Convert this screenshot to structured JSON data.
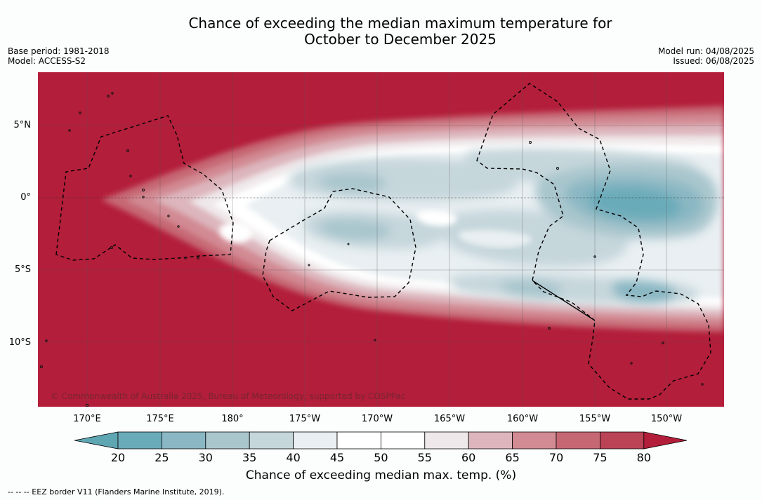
{
  "title_line1": "Chance of exceeding the median maximum temperature for",
  "title_line2": "October to December 2025",
  "base_period": "Base period: 1981-2018",
  "model": "Model: ACCESS-S2",
  "model_run": "Model run: 04/08/2025",
  "issued": "Issued: 06/08/2025",
  "copyright": "© Commonwealth of Australia 2025, Bureau of Meteorology, supported by COSPPac",
  "lat_labels": [
    "5°N",
    "0°",
    "5°S",
    "10°S"
  ],
  "lon_labels": [
    "170°E",
    "175°E",
    "180°",
    "175°W",
    "170°W",
    "165°W",
    "160°W",
    "155°W",
    "150°W"
  ],
  "colorbar": {
    "ticks": [
      "20",
      "25",
      "30",
      "35",
      "40",
      "45",
      "50",
      "55",
      "60",
      "65",
      "70",
      "75",
      "80"
    ],
    "colors": [
      "#5fa6b3",
      "#6aabb9",
      "#8ab7c3",
      "#a9c6cd",
      "#c6d7dc",
      "#e9eff2",
      "#ffffff",
      "#ffffff",
      "#efe8ea",
      "#ddb6bd",
      "#d28a93",
      "#c66874",
      "#ba4456",
      "#b31e3a"
    ],
    "label": "Chance of exceeding median max. temp. (%)"
  },
  "footnote": "--  --  -- EEZ border V11 (Flanders Marine Institute, 2019).",
  "map_colors": {
    "hot": "#b31e3a"
  }
}
